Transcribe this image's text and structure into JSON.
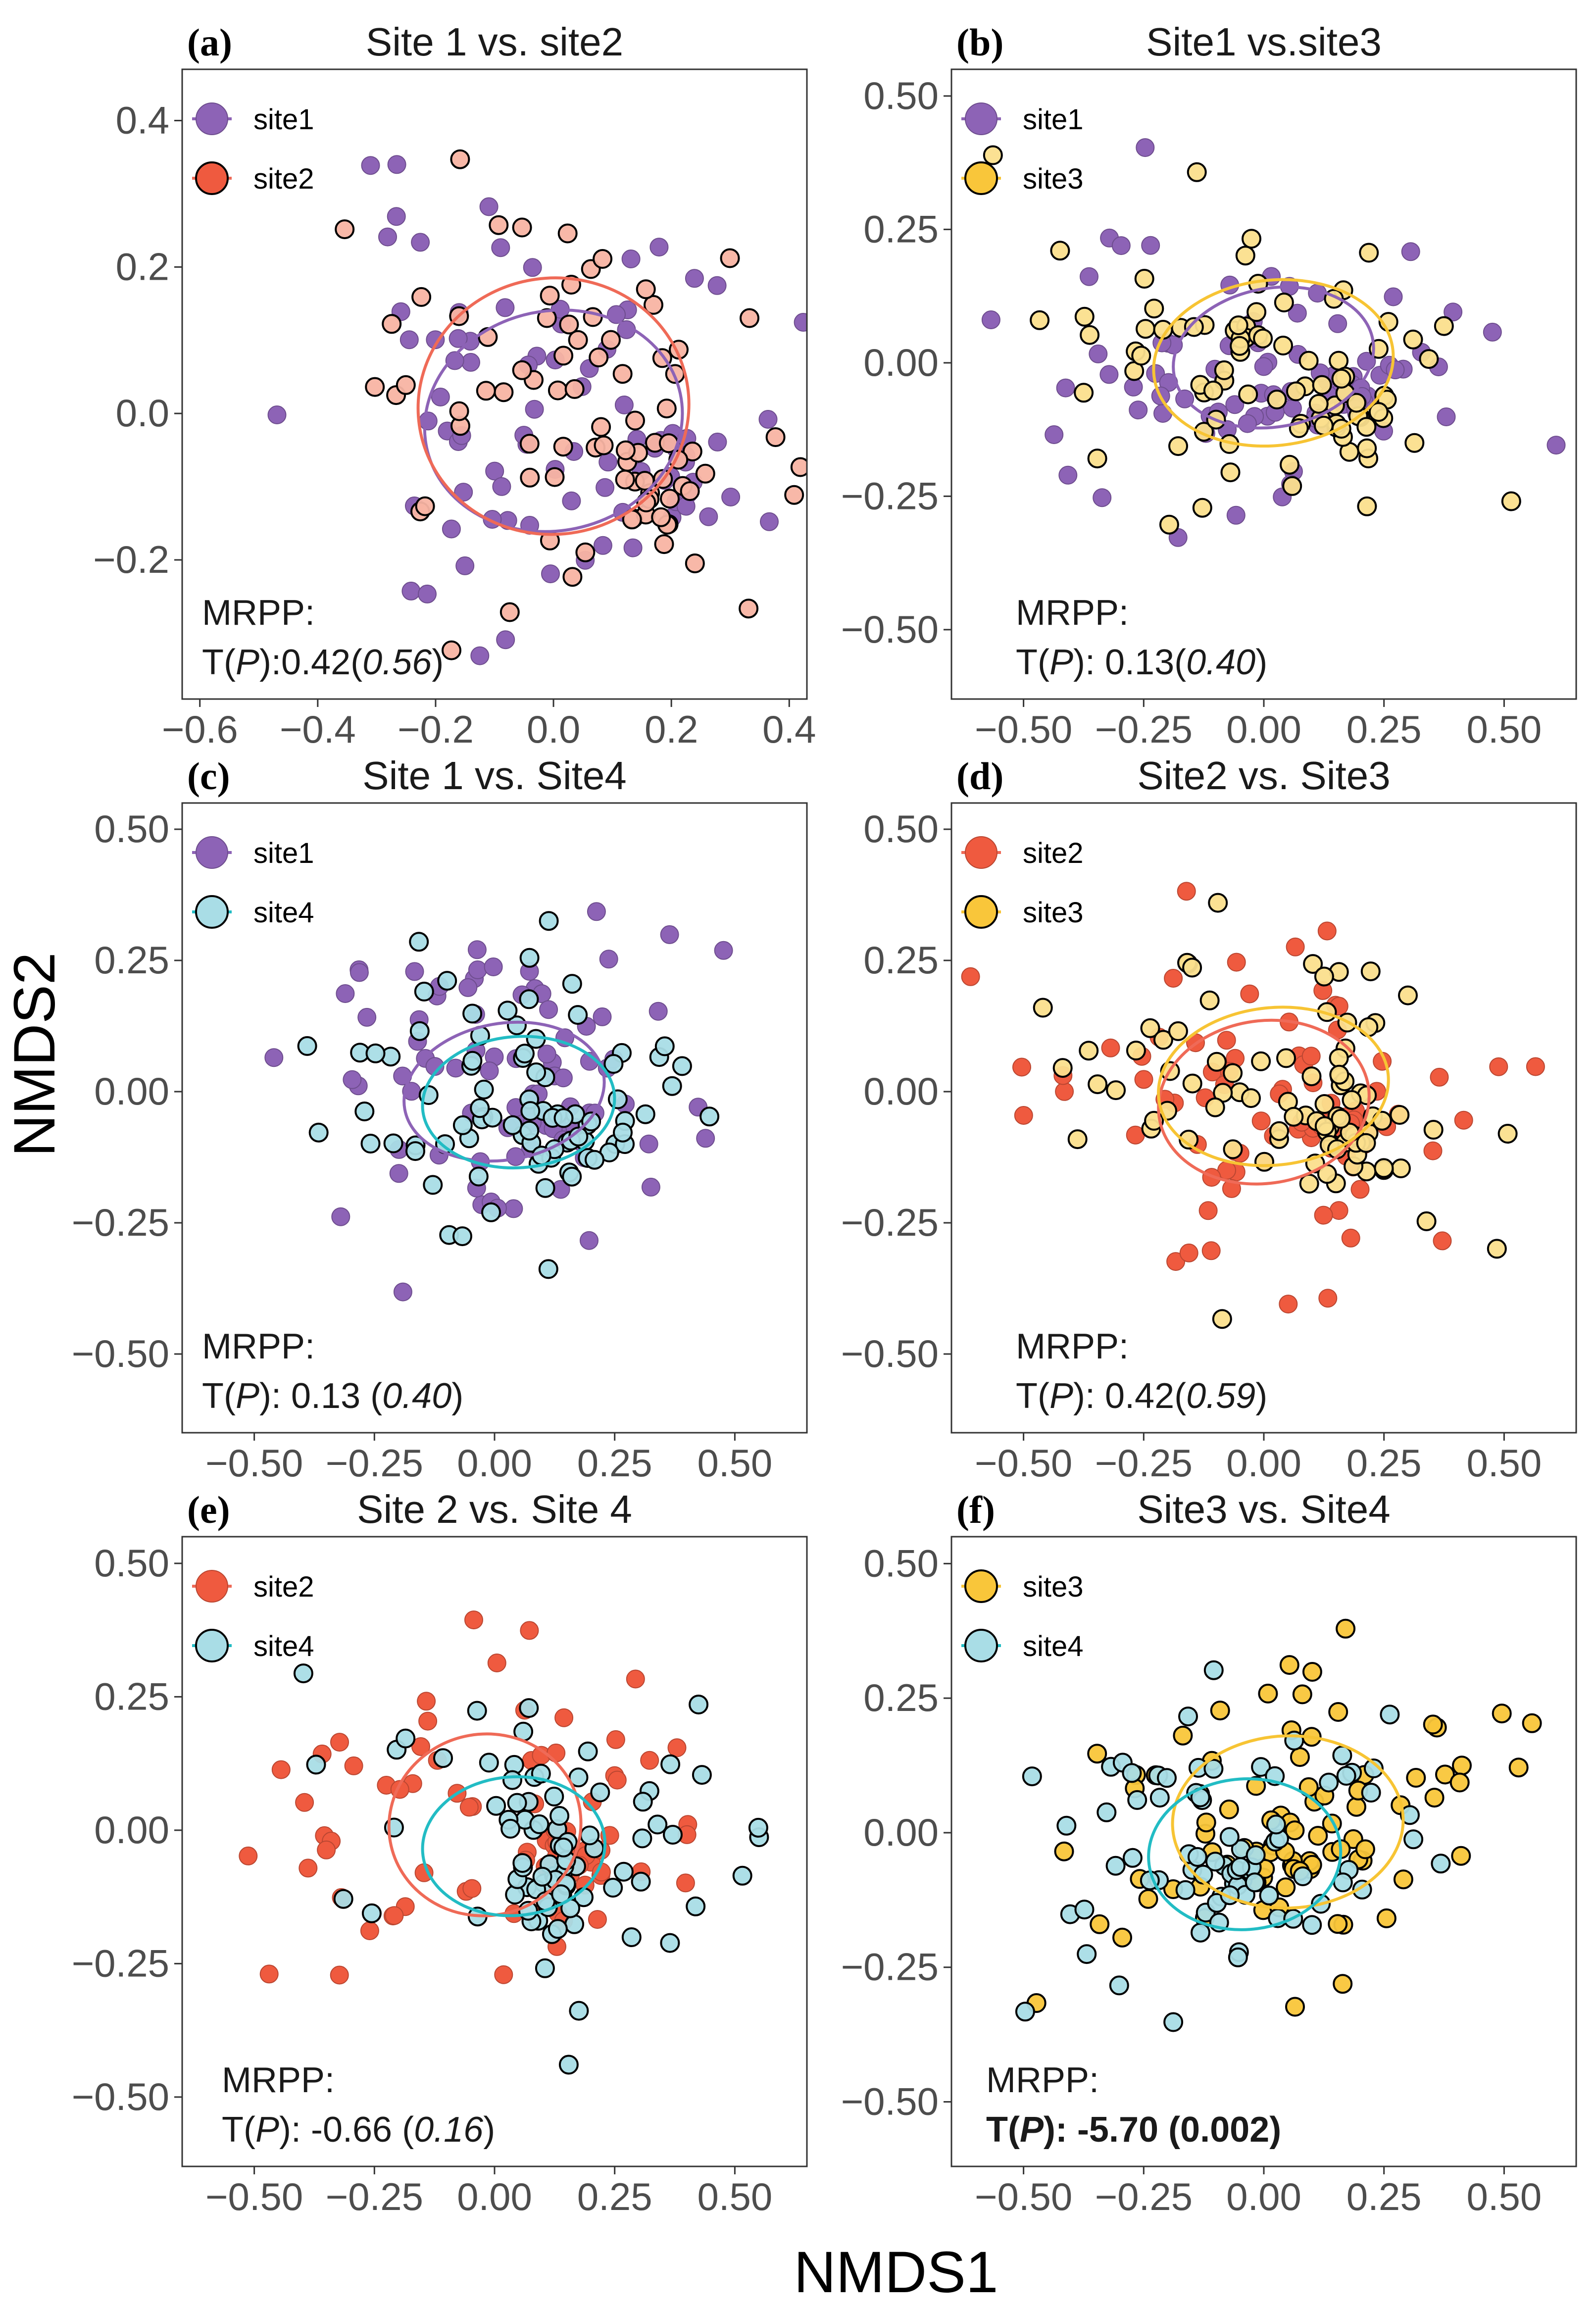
{
  "figure": {
    "xlabel": "NMDS1",
    "ylabel": "NMDS2"
  },
  "colors": {
    "site1": "#8d63b6",
    "site2": "#ef5a3f",
    "site3": "#f9c63a",
    "site4": "#a9dde6",
    "site2_light": "#f8b4a3",
    "site3_light": "#fbdf8d",
    "ellipse_site1": "#8d63b6",
    "ellipse_site2": "#ef6a57",
    "ellipse_site3": "#f7c434",
    "ellipse_site4": "#22bcc4"
  },
  "chart_data": [
    {
      "type": "scatter",
      "panel": "(a)",
      "title": "Site 1 vs. site2",
      "xlim": [
        -0.63,
        0.43
      ],
      "ylim": [
        -0.39,
        0.47
      ],
      "xticks": [
        -0.6,
        -0.4,
        -0.2,
        0.0,
        0.2,
        0.4
      ],
      "xtick_labels": [
        "−0.6",
        "−0.4",
        "−0.2",
        "0.0",
        "0.2",
        "0.4"
      ],
      "yticks": [
        -0.2,
        0.0,
        0.2,
        0.4
      ],
      "ytick_labels": [
        "−0.2",
        "0.0",
        "0.2",
        "0.4"
      ],
      "legend": [
        {
          "label": "site1",
          "series": "site1"
        },
        {
          "label": "site2",
          "series": "site2"
        }
      ],
      "annotation": {
        "line1": "MRPP:",
        "line2_pre": "T(",
        "line2_p": "P",
        "line2_mid": "):0.42(",
        "line2_val": "0.56",
        "line2_post": ")",
        "bold": false
      },
      "series": [
        {
          "name": "site1",
          "color_key": "site1",
          "outline": false,
          "seed": 11,
          "n": 90,
          "cx": -0.02,
          "cy": 0.0,
          "sx": 0.19,
          "sy": 0.15,
          "clusters": [
            [
              0.18,
              -0.08,
              0.045,
              0.035,
              18
            ]
          ],
          "ellipse": {
            "cx": 0.0,
            "cy": -0.01,
            "rx": 0.22,
            "ry": 0.15,
            "angle": -12
          }
        },
        {
          "name": "site2",
          "color_key": "site2_light",
          "outline": true,
          "seed": 23,
          "n": 85,
          "cx": 0.0,
          "cy": 0.02,
          "sx": 0.19,
          "sy": 0.16,
          "clusters": [
            [
              0.17,
              -0.1,
              0.045,
              0.04,
              22
            ]
          ],
          "ellipse": {
            "cx": 0.0,
            "cy": 0.01,
            "rx": 0.23,
            "ry": 0.175,
            "angle": -8
          }
        }
      ]
    },
    {
      "type": "scatter",
      "panel": "(b)",
      "title": "Site1 vs.site3",
      "xlim": [
        -0.65,
        0.65
      ],
      "ylim": [
        -0.63,
        0.55
      ],
      "xticks": [
        -0.5,
        -0.25,
        0.0,
        0.25,
        0.5
      ],
      "xtick_labels": [
        "−0.50",
        "−0.25",
        "0.00",
        "0.25",
        "0.50"
      ],
      "yticks": [
        -0.5,
        -0.25,
        0.0,
        0.25,
        0.5
      ],
      "ytick_labels": [
        "−0.50",
        "−0.25",
        "0.00",
        "0.25",
        "0.50"
      ],
      "legend": [
        {
          "label": "site1",
          "series": "site1"
        },
        {
          "label": "site3",
          "series": "site3"
        }
      ],
      "annotation": {
        "line1": "MRPP:",
        "line2_pre": "T(",
        "line2_p": "P",
        "line2_mid": "): 0.13(",
        "line2_val": "0.40",
        "line2_post": ")",
        "bold": false
      },
      "series": [
        {
          "name": "site1",
          "color_key": "site1",
          "outline": false,
          "seed": 37,
          "n": 90,
          "cx": 0.0,
          "cy": 0.0,
          "sx": 0.21,
          "sy": 0.13,
          "clusters": [
            [
              0.17,
              -0.06,
              0.05,
              0.04,
              20
            ]
          ],
          "ellipse": {
            "cx": 0.02,
            "cy": 0.01,
            "rx": 0.21,
            "ry": 0.13,
            "angle": -10
          }
        },
        {
          "name": "site3",
          "color_key": "site3_light",
          "outline": true,
          "seed": 41,
          "n": 90,
          "cx": 0.0,
          "cy": 0.0,
          "sx": 0.22,
          "sy": 0.14,
          "clusters": [
            [
              0.16,
              -0.08,
              0.05,
              0.045,
              24
            ]
          ],
          "ellipse": {
            "cx": 0.02,
            "cy": 0.0,
            "rx": 0.25,
            "ry": 0.155,
            "angle": -6
          }
        }
      ]
    },
    {
      "type": "scatter",
      "panel": "(c)",
      "title": "Site 1 vs. Site4",
      "xlim": [
        -0.65,
        0.65
      ],
      "ylim": [
        -0.65,
        0.55
      ],
      "xticks": [
        -0.5,
        -0.25,
        0.0,
        0.25,
        0.5
      ],
      "xtick_labels": [
        "−0.50",
        "−0.25",
        "0.00",
        "0.25",
        "0.50"
      ],
      "yticks": [
        -0.5,
        -0.25,
        0.0,
        0.25,
        0.5
      ],
      "ytick_labels": [
        "−0.50",
        "−0.25",
        "0.00",
        "0.25",
        "0.50"
      ],
      "legend": [
        {
          "label": "site1",
          "series": "site1"
        },
        {
          "label": "site4",
          "series": "site4"
        }
      ],
      "annotation": {
        "line1": "MRPP:",
        "line2_pre": "T(",
        "line2_p": "P",
        "line2_mid": "): 0.13 (",
        "line2_val": "0.40",
        "line2_post": ")",
        "bold": false
      },
      "series": [
        {
          "name": "site1",
          "color_key": "site1",
          "outline": false,
          "seed": 53,
          "n": 90,
          "cx": 0.0,
          "cy": 0.02,
          "sx": 0.21,
          "sy": 0.14,
          "clusters": [
            [
              0.12,
              -0.07,
              0.06,
              0.04,
              18
            ]
          ],
          "ellipse": {
            "cx": 0.02,
            "cy": 0.0,
            "rx": 0.21,
            "ry": 0.13,
            "angle": -10
          }
        },
        {
          "name": "site4",
          "color_key": "site4",
          "outline": true,
          "seed": 59,
          "n": 85,
          "cx": 0.05,
          "cy": 0.0,
          "sx": 0.2,
          "sy": 0.13,
          "clusters": [
            [
              0.14,
              -0.08,
              0.05,
              0.04,
              22
            ]
          ],
          "ellipse": {
            "cx": 0.05,
            "cy": -0.02,
            "rx": 0.2,
            "ry": 0.125,
            "angle": -4
          }
        }
      ]
    },
    {
      "type": "scatter",
      "panel": "(d)",
      "title": "Site2 vs. Site3",
      "xlim": [
        -0.65,
        0.65
      ],
      "ylim": [
        -0.65,
        0.55
      ],
      "xticks": [
        -0.5,
        -0.25,
        0.0,
        0.25,
        0.5
      ],
      "xtick_labels": [
        "−0.50",
        "−0.25",
        "0.00",
        "0.25",
        "0.50"
      ],
      "yticks": [
        -0.5,
        -0.25,
        0.0,
        0.25,
        0.5
      ],
      "ytick_labels": [
        "−0.50",
        "−0.25",
        "0.00",
        "0.25",
        "0.50"
      ],
      "legend": [
        {
          "label": "site2",
          "series": "site2"
        },
        {
          "label": "site3",
          "series": "site3"
        }
      ],
      "annotation": {
        "line1": "MRPP:",
        "line2_pre": "T(",
        "line2_p": "P",
        "line2_mid": "): 0.42(",
        "line2_val": "0.59",
        "line2_post": ")",
        "bold": false
      },
      "series": [
        {
          "name": "site2",
          "color_key": "site2",
          "outline": false,
          "seed": 67,
          "n": 90,
          "cx": -0.02,
          "cy": 0.0,
          "sx": 0.22,
          "sy": 0.15,
          "clusters": [
            [
              0.16,
              -0.08,
              0.05,
              0.045,
              22
            ]
          ],
          "ellipse": {
            "cx": 0.0,
            "cy": -0.02,
            "rx": 0.22,
            "ry": 0.155,
            "angle": -8
          }
        },
        {
          "name": "site3",
          "color_key": "site3_light",
          "outline": true,
          "seed": 71,
          "n": 90,
          "cx": 0.0,
          "cy": 0.02,
          "sx": 0.22,
          "sy": 0.15,
          "clusters": [
            [
              0.17,
              -0.08,
              0.05,
              0.045,
              24
            ]
          ],
          "ellipse": {
            "cx": 0.02,
            "cy": 0.01,
            "rx": 0.24,
            "ry": 0.15,
            "angle": -6
          }
        }
      ]
    },
    {
      "type": "scatter",
      "panel": "(e)",
      "title": "Site 2 vs. Site 4",
      "xlim": [
        -0.65,
        0.65
      ],
      "ylim": [
        -0.63,
        0.55
      ],
      "xticks": [
        -0.5,
        -0.25,
        0.0,
        0.25,
        0.5
      ],
      "xtick_labels": [
        "−0.50",
        "−0.25",
        "0.00",
        "0.25",
        "0.50"
      ],
      "yticks": [
        -0.5,
        -0.25,
        0.0,
        0.25,
        0.5
      ],
      "ytick_labels": [
        "−0.50",
        "−0.25",
        "0.00",
        "0.25",
        "0.50"
      ],
      "legend": [
        {
          "label": "site2",
          "series": "site2"
        },
        {
          "label": "site4",
          "series": "site4"
        }
      ],
      "annotation": {
        "line1": "MRPP:",
        "line2_pre": "T(",
        "line2_p": "P",
        "line2_mid": "): -0.66 (",
        "line2_val": "0.16",
        "line2_post": ")",
        "bold": false
      },
      "series": [
        {
          "name": "site2",
          "color_key": "site2",
          "outline": false,
          "seed": 83,
          "n": 85,
          "cx": -0.05,
          "cy": 0.03,
          "sx": 0.22,
          "sy": 0.16,
          "clusters": [
            [
              0.14,
              -0.06,
              0.05,
              0.05,
              22
            ]
          ],
          "ellipse": {
            "cx": -0.02,
            "cy": 0.01,
            "rx": 0.2,
            "ry": 0.17,
            "angle": -10
          }
        },
        {
          "name": "site4",
          "color_key": "site4",
          "outline": true,
          "seed": 89,
          "n": 85,
          "cx": 0.05,
          "cy": 0.0,
          "sx": 0.2,
          "sy": 0.14,
          "clusters": [
            [
              0.14,
              -0.08,
              0.05,
              0.045,
              22
            ]
          ],
          "ellipse": {
            "cx": 0.04,
            "cy": -0.03,
            "rx": 0.19,
            "ry": 0.13,
            "angle": -4
          }
        }
      ]
    },
    {
      "type": "scatter",
      "panel": "(f)",
      "title": "Site3 vs. Site4",
      "xlim": [
        -0.65,
        0.65
      ],
      "ylim": [
        -0.62,
        0.55
      ],
      "xticks": [
        -0.5,
        -0.25,
        0.0,
        0.25,
        0.5
      ],
      "xtick_labels": [
        "−0.50",
        "−0.25",
        "0.00",
        "0.25",
        "0.50"
      ],
      "yticks": [
        -0.5,
        -0.25,
        0.0,
        0.25,
        0.5
      ],
      "ytick_labels": [
        "−0.50",
        "−0.25",
        "0.00",
        "0.25",
        "0.50"
      ],
      "legend": [
        {
          "label": "site3",
          "series": "site3"
        },
        {
          "label": "site4",
          "series": "site4"
        }
      ],
      "annotation": {
        "line1": "MRPP:",
        "line2_pre": "T(",
        "line2_p": "P",
        "line2_mid": "): -5.70 (",
        "line2_val": "0.002",
        "line2_post": ")",
        "bold": true
      },
      "series": [
        {
          "name": "site3",
          "color_key": "site3",
          "outline": true,
          "seed": 97,
          "n": 90,
          "cx": 0.05,
          "cy": 0.02,
          "sx": 0.23,
          "sy": 0.15,
          "clusters": [
            [
              0.0,
              -0.05,
              0.07,
              0.05,
              18
            ]
          ],
          "ellipse": {
            "cx": 0.05,
            "cy": 0.02,
            "rx": 0.24,
            "ry": 0.16,
            "angle": -2
          }
        },
        {
          "name": "site4",
          "color_key": "site4",
          "outline": true,
          "seed": 101,
          "n": 80,
          "cx": -0.03,
          "cy": -0.02,
          "sx": 0.22,
          "sy": 0.14,
          "clusters": [
            [
              -0.08,
              -0.06,
              0.06,
              0.04,
              20
            ]
          ],
          "ellipse": {
            "cx": -0.04,
            "cy": -0.04,
            "rx": 0.2,
            "ry": 0.14,
            "angle": -4
          }
        }
      ]
    }
  ]
}
